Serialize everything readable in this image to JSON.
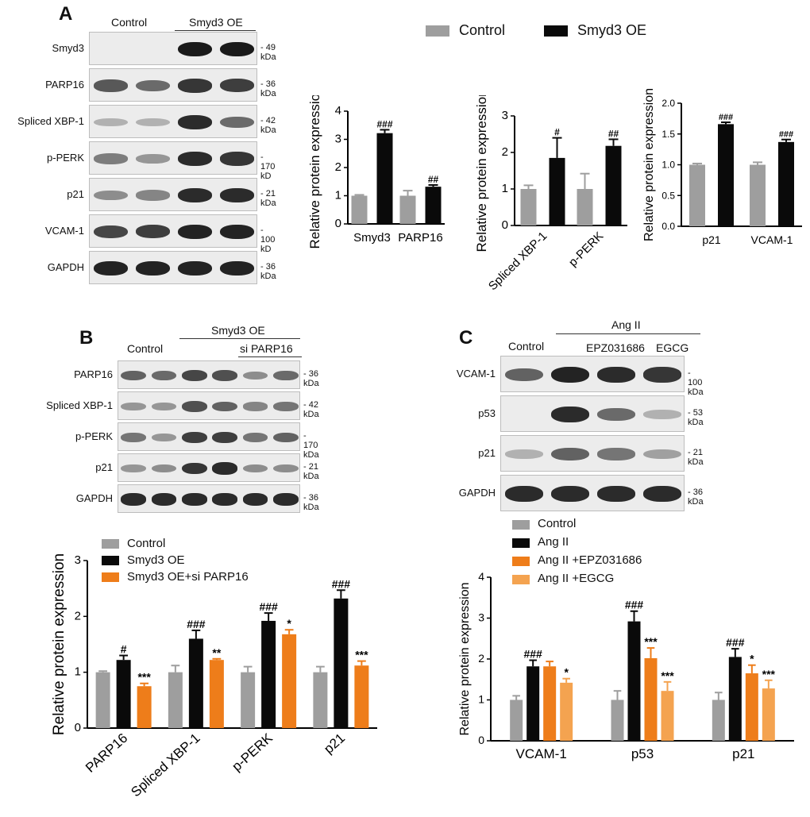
{
  "colors": {
    "control": "#9e9e9e",
    "treated": "#0a0a0a",
    "orange_dark": "#ee7d1a",
    "orange_light": "#f4a350"
  },
  "panel_a": {
    "letter": "A",
    "group_labels": [
      "Control",
      "Smyd3 OE"
    ],
    "blots": [
      {
        "label": "Smyd3",
        "kda": "49 kDa",
        "lanes": [
          0,
          0,
          1.0,
          1.0
        ]
      },
      {
        "label": "PARP16",
        "kda": "36 kDa",
        "lanes": [
          0.65,
          0.55,
          0.85,
          0.8
        ]
      },
      {
        "label": "Spliced XBP-1",
        "kda": "42 kDa",
        "lanes": [
          0.15,
          0.15,
          0.9,
          0.55
        ]
      },
      {
        "label": "p-PERK",
        "kda": "170 kD",
        "lanes": [
          0.45,
          0.3,
          0.9,
          0.85
        ]
      },
      {
        "label": "p21",
        "kda": "21 kDa",
        "lanes": [
          0.35,
          0.4,
          0.9,
          0.9
        ]
      },
      {
        "label": "VCAM-1",
        "kda": "100 kD",
        "lanes": [
          0.75,
          0.8,
          0.95,
          0.95
        ]
      },
      {
        "label": "GAPDH",
        "kda": "36 kDa",
        "lanes": [
          0.95,
          0.95,
          0.95,
          0.95
        ]
      }
    ],
    "legend": [
      "Control",
      "Smyd3 OE"
    ]
  },
  "panel_b": {
    "letter": "B",
    "group_labels": {
      "control": "Control",
      "treatment": "Smyd3 OE",
      "sub": "si PARP16"
    },
    "blots": [
      {
        "label": "PARP16",
        "kda": "36 kDa",
        "lanes": [
          0.6,
          0.55,
          0.75,
          0.7,
          0.35,
          0.55
        ]
      },
      {
        "label": "Spliced XBP-1",
        "kda": "42 kDa",
        "lanes": [
          0.3,
          0.3,
          0.7,
          0.6,
          0.4,
          0.5
        ]
      },
      {
        "label": "p-PERK",
        "kda": "170 kDa",
        "lanes": [
          0.5,
          0.3,
          0.8,
          0.8,
          0.5,
          0.6
        ]
      },
      {
        "label": "p21",
        "kda": "21 kDa",
        "lanes": [
          0.3,
          0.35,
          0.85,
          0.9,
          0.35,
          0.35
        ]
      },
      {
        "label": "GAPDH",
        "kda": "36 kDa",
        "lanes": [
          0.9,
          0.9,
          0.9,
          0.9,
          0.9,
          0.9
        ]
      }
    ],
    "legend": [
      "Control",
      "Smyd3 OE",
      "Smyd3 OE+si PARP16"
    ]
  },
  "panel_c": {
    "letter": "C",
    "group_labels": {
      "control": "Control",
      "treatment": "Ang II",
      "sub1": "EPZ031686",
      "sub2": "EGCG"
    },
    "blots": [
      {
        "label": "VCAM-1",
        "kda": "100 kDa",
        "lanes": [
          0.6,
          0.95,
          0.9,
          0.85
        ]
      },
      {
        "label": "p53",
        "kda": "53 kDa",
        "lanes": [
          0,
          0.9,
          0.55,
          0.15
        ]
      },
      {
        "label": "p21",
        "kda": "21 kDa",
        "lanes": [
          0.15,
          0.6,
          0.5,
          0.25
        ]
      },
      {
        "label": "GAPDH",
        "kda": "36 kDa",
        "lanes": [
          0.9,
          0.9,
          0.9,
          0.9
        ]
      }
    ],
    "legend": [
      "Control",
      "Ang II",
      "Ang II +EPZ031686",
      "Ang II +EGCG"
    ]
  },
  "chart_data": [
    {
      "type": "bar",
      "ylabel": "Relative protein expression",
      "categories": [
        "Smyd3",
        "PARP16"
      ],
      "ylim": [
        0,
        4
      ],
      "yticks": [
        0,
        1,
        2,
        3,
        4
      ],
      "series": [
        {
          "name": "Control",
          "values": [
            1.0,
            1.0
          ],
          "errors": [
            0.03,
            0.18
          ]
        },
        {
          "name": "Smyd3 OE",
          "values": [
            3.22,
            1.32
          ],
          "errors": [
            0.12,
            0.06
          ]
        }
      ],
      "annotations": [
        [
          "",
          ""
        ],
        [
          "###",
          "##"
        ]
      ]
    },
    {
      "type": "bar",
      "ylabel": "Relative protein expression",
      "categories": [
        "Spliced XBP-1",
        "p-PERK"
      ],
      "ylim": [
        0,
        3
      ],
      "yticks": [
        0,
        1,
        2,
        3
      ],
      "series": [
        {
          "name": "Control",
          "values": [
            1.0,
            1.0
          ],
          "errors": [
            0.1,
            0.42
          ]
        },
        {
          "name": "Smyd3 OE",
          "values": [
            1.85,
            2.18
          ],
          "errors": [
            0.55,
            0.18
          ]
        }
      ],
      "annotations": [
        [
          "",
          ""
        ],
        [
          "#",
          "##"
        ]
      ]
    },
    {
      "type": "bar",
      "ylabel": "Relative protein expression",
      "categories": [
        "p21",
        "VCAM-1"
      ],
      "ylim": [
        0,
        2.0
      ],
      "yticks": [
        "0.0",
        "0.5",
        "1.0",
        "1.5",
        "2.0"
      ],
      "series": [
        {
          "name": "Control",
          "values": [
            1.0,
            1.0
          ],
          "errors": [
            0.02,
            0.04
          ]
        },
        {
          "name": "Smyd3 OE",
          "values": [
            1.66,
            1.37
          ],
          "errors": [
            0.03,
            0.04
          ]
        }
      ],
      "annotations": [
        [
          "",
          ""
        ],
        [
          "###",
          "###"
        ]
      ]
    },
    {
      "type": "bar",
      "ylabel": "Relative protein expression",
      "categories": [
        "PARP16",
        "Spliced XBP-1",
        "p-PERK",
        "p21"
      ],
      "ylim": [
        0,
        3
      ],
      "yticks": [
        0,
        1,
        2,
        3
      ],
      "series": [
        {
          "name": "Control",
          "values": [
            1.0,
            1.0,
            1.0,
            1.0
          ],
          "errors": [
            0.02,
            0.12,
            0.1,
            0.1
          ]
        },
        {
          "name": "Smyd3 OE",
          "values": [
            1.22,
            1.6,
            1.92,
            2.32
          ],
          "errors": [
            0.08,
            0.15,
            0.14,
            0.15
          ]
        },
        {
          "name": "Smyd3 OE+si PARP16",
          "values": [
            0.75,
            1.22,
            1.68,
            1.12
          ],
          "errors": [
            0.05,
            0.02,
            0.08,
            0.08
          ]
        }
      ],
      "annotations": [
        [
          "",
          "",
          "",
          ""
        ],
        [
          "#",
          "###",
          "###",
          "###"
        ],
        [
          "***",
          "**",
          "*",
          "***"
        ]
      ]
    },
    {
      "type": "bar",
      "ylabel": "Relative protein expression",
      "categories": [
        "VCAM-1",
        "p53",
        "p21"
      ],
      "ylim": [
        0,
        4
      ],
      "yticks": [
        0,
        1,
        2,
        3,
        4
      ],
      "series": [
        {
          "name": "Control",
          "values": [
            1.0,
            1.0,
            1.0
          ],
          "errors": [
            0.1,
            0.22,
            0.18
          ]
        },
        {
          "name": "Ang II",
          "values": [
            1.82,
            2.92,
            2.05
          ],
          "errors": [
            0.15,
            0.25,
            0.2
          ]
        },
        {
          "name": "Ang II +EPZ031686",
          "values": [
            1.82,
            2.02,
            1.65
          ],
          "errors": [
            0.12,
            0.25,
            0.2
          ]
        },
        {
          "name": "Ang II +EGCG",
          "values": [
            1.42,
            1.22,
            1.28
          ],
          "errors": [
            0.1,
            0.22,
            0.2
          ]
        }
      ],
      "annotations": [
        [
          "",
          "",
          ""
        ],
        [
          "###",
          "###",
          "###"
        ],
        [
          "",
          "***",
          "*"
        ],
        [
          "*",
          "***",
          "***"
        ]
      ]
    }
  ]
}
